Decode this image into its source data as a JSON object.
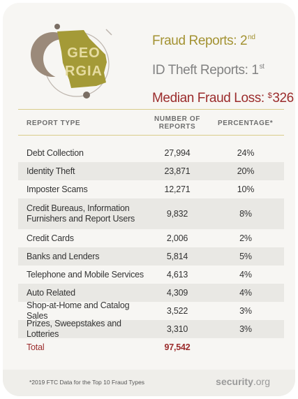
{
  "logo": {
    "state_text": "GEORGIA",
    "line1": "GEO",
    "line2": "RGIA"
  },
  "stats": {
    "fraud_reports_label": "Fraud Reports: 2",
    "fraud_reports_suffix": "nd",
    "id_theft_label": "ID Theft Reports: 1",
    "id_theft_suffix": "st",
    "median_loss_label": "Median Fraud Loss: ",
    "median_loss_currency": "$",
    "median_loss_value": "326"
  },
  "table": {
    "headers": {
      "report_type": "REPORT TYPE",
      "number_line1": "NUMBER OF",
      "number_line2": "REPORTS",
      "percentage": "PERCENTAGE*"
    },
    "rows": [
      {
        "type": "Debt Collection",
        "reports": "27,994",
        "percent": "24%"
      },
      {
        "type": "Identity Theft",
        "reports": "23,871",
        "percent": "20%"
      },
      {
        "type": "Imposter Scams",
        "reports": "12,271",
        "percent": "10%"
      },
      {
        "type": "Credit Bureaus, Information Furnishers and Report Users",
        "reports": "9,832",
        "percent": "8%"
      },
      {
        "type": "Credit Cards",
        "reports": "2,006",
        "percent": "2%"
      },
      {
        "type": "Banks and Lenders",
        "reports": "5,814",
        "percent": "5%"
      },
      {
        "type": "Telephone and Mobile Services",
        "reports": "4,613",
        "percent": "4%"
      },
      {
        "type": "Auto Related",
        "reports": "4,309",
        "percent": "4%"
      },
      {
        "type": "Shop-at-Home and Catalog Sales",
        "reports": "3,522",
        "percent": "3%"
      },
      {
        "type": "Prizes, Sweepstakes and Lotteries",
        "reports": "3,310",
        "percent": "3%"
      }
    ],
    "total": {
      "label": "Total",
      "reports": "97,542"
    }
  },
  "footer": {
    "note": "*2019 FTC Data for the Top 10 Fraud Types",
    "brand_name": "security",
    "brand_tld": ".org"
  },
  "colors": {
    "gold": "#a39232",
    "gray": "#828282",
    "red": "#9b2c2c",
    "state_fill": "#a49a37",
    "moon": "#9b8a7a",
    "card_bg": "#f7f6f3",
    "row_alt": "#e9e8e4"
  }
}
